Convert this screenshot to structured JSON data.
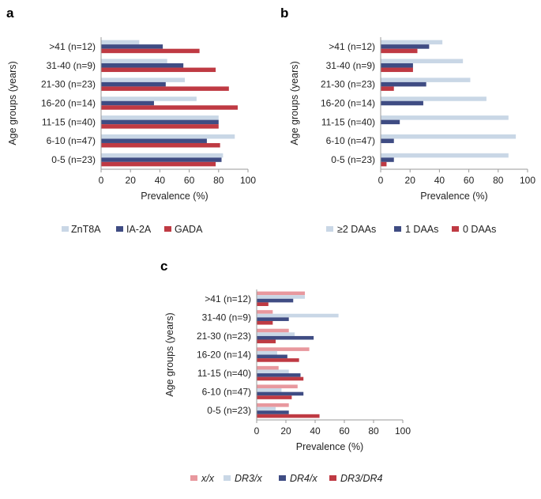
{
  "colors": {
    "light_blue": "#c9d7e6",
    "navy": "#3f4c83",
    "red": "#bf3a43",
    "pink": "#e8989e"
  },
  "chart_data": [
    {
      "panel": "a",
      "type": "bar",
      "orientation": "horizontal",
      "categories": [
        "0-5 (n=23)",
        "6-10 (n=47)",
        "11-15 (n=40)",
        "16-20 (n=14)",
        "21-30 (n=23)",
        "31-40 (n=9)",
        ">41 (n=12)"
      ],
      "series": [
        {
          "name": "ZnT8A",
          "color": "light_blue",
          "values": [
            83,
            91,
            80,
            65,
            57,
            45,
            26
          ]
        },
        {
          "name": "IA-2A",
          "color": "navy",
          "values": [
            82,
            72,
            80,
            36,
            44,
            56,
            42
          ]
        },
        {
          "name": "GADA",
          "color": "red",
          "values": [
            78,
            81,
            80,
            93,
            87,
            78,
            67
          ]
        }
      ],
      "xlabel": "Prevalence  (%)",
      "ylabel": "Age groups  (years)",
      "xlim": [
        0,
        100
      ],
      "xticks": [
        "0",
        "20",
        "40",
        "60",
        "80",
        "100"
      ],
      "legend_position": "bottom"
    },
    {
      "panel": "b",
      "type": "bar",
      "orientation": "horizontal",
      "categories": [
        "0-5 (n=23)",
        "6-10 (n=47)",
        "11-15 (n=40)",
        "16-20 (n=14)",
        "21-30 (n=23)",
        "31-40 (n=9)",
        ">41 (n=12)"
      ],
      "series": [
        {
          "name": "≥2 DAAs",
          "color": "light_blue",
          "values": [
            87,
            92,
            87,
            72,
            61,
            56,
            42
          ]
        },
        {
          "name": "1 DAAs",
          "color": "navy",
          "values": [
            9,
            9,
            13,
            29,
            31,
            22,
            33
          ]
        },
        {
          "name": "0 DAAs",
          "color": "red",
          "values": [
            4,
            0,
            0,
            0,
            9,
            22,
            25
          ]
        }
      ],
      "xlabel": "Prevalence  (%)",
      "ylabel": "Age groups  (years)",
      "xlim": [
        0,
        100
      ],
      "xticks": [
        "0",
        "20",
        "40",
        "60",
        "80",
        "100"
      ],
      "legend_position": "bottom"
    },
    {
      "panel": "c",
      "type": "bar",
      "orientation": "horizontal",
      "categories": [
        "0-5 (n=23)",
        "6-10 (n=47)",
        "11-15 (n=40)",
        "16-20 (n=14)",
        "21-30 (n=23)",
        "31-40 (n=9)",
        ">41 (n=12)"
      ],
      "series": [
        {
          "name": "x/x",
          "color": "pink",
          "values": [
            22,
            28,
            15,
            36,
            22,
            11,
            33
          ]
        },
        {
          "name": "DR3/x",
          "color": "light_blue",
          "values": [
            13,
            17,
            22,
            14,
            26,
            56,
            33
          ]
        },
        {
          "name": "DR4/x",
          "color": "navy",
          "values": [
            22,
            32,
            30,
            21,
            39,
            22,
            25
          ]
        },
        {
          "name": "DR3/DR4",
          "color": "red",
          "values": [
            43,
            24,
            32,
            29,
            13,
            11,
            8
          ]
        }
      ],
      "xlabel": "Prevalence  (%)",
      "ylabel": "Age groups  (years)",
      "xlim": [
        0,
        100
      ],
      "xticks": [
        "0",
        "20",
        "40",
        "60",
        "80",
        "100"
      ],
      "legend_position": "bottom"
    }
  ]
}
